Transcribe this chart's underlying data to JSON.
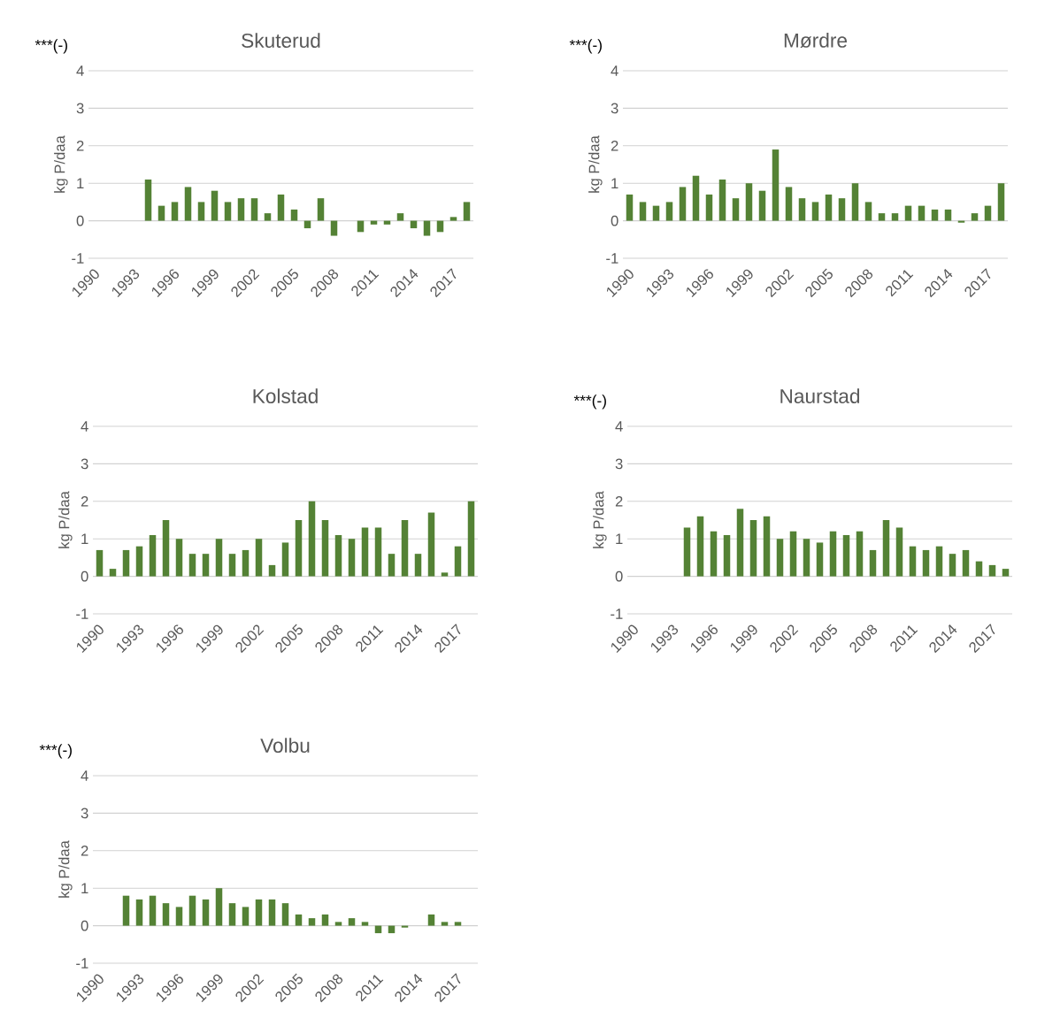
{
  "chart_data": [
    {
      "type": "bar",
      "title": "Skuterud",
      "ylabel": "kg P/daa",
      "annotations": [
        "***(-)"
      ],
      "color": "#548235",
      "ylim": [
        -1,
        4
      ],
      "yticks": [
        -1,
        0,
        1,
        2,
        3,
        4
      ],
      "grid": "y",
      "categories": [
        "1990",
        null,
        null,
        "1993",
        null,
        null,
        "1996",
        null,
        null,
        "1999",
        null,
        null,
        "2002",
        null,
        null,
        "2005",
        null,
        null,
        "2008",
        null,
        null,
        "2011",
        null,
        null,
        "2014",
        null,
        null,
        "2017",
        null
      ],
      "values": [
        null,
        null,
        null,
        null,
        1.1,
        0.4,
        0.5,
        0.9,
        0.5,
        0.8,
        0.5,
        0.6,
        0.6,
        0.2,
        0.7,
        0.3,
        -0.2,
        0.6,
        -0.4,
        null,
        -0.3,
        -0.1,
        -0.1,
        0.2,
        -0.2,
        -0.4,
        -0.3,
        0.1,
        0.5
      ]
    },
    {
      "type": "bar",
      "title": "Mørdre",
      "ylabel": "kg P/daa",
      "annotations": [
        "***(-)"
      ],
      "color": "#548235",
      "ylim": [
        -1,
        4
      ],
      "yticks": [
        -1,
        0,
        1,
        2,
        3,
        4
      ],
      "grid": "y",
      "categories": [
        "1990",
        null,
        null,
        "1993",
        null,
        null,
        "1996",
        null,
        null,
        "1999",
        null,
        null,
        "2002",
        null,
        null,
        "2005",
        null,
        null,
        "2008",
        null,
        null,
        "2011",
        null,
        null,
        "2014",
        null,
        null,
        "2017",
        null
      ],
      "values": [
        0.7,
        0.5,
        0.4,
        0.5,
        0.9,
        1.2,
        0.7,
        1.1,
        0.6,
        1.0,
        0.8,
        1.9,
        0.9,
        0.6,
        0.5,
        0.7,
        0.6,
        1.0,
        0.5,
        0.2,
        0.2,
        0.4,
        0.4,
        0.3,
        0.3,
        -0.05,
        0.2,
        0.4,
        1.0
      ]
    },
    {
      "type": "bar",
      "title": "Kolstad",
      "ylabel": "kg P/daa",
      "color": "#548235",
      "ylim": [
        -1,
        4
      ],
      "yticks": [
        -1,
        0,
        1,
        2,
        3,
        4
      ],
      "grid": "y",
      "categories": [
        "1990",
        null,
        null,
        "1993",
        null,
        null,
        "1996",
        null,
        null,
        "1999",
        null,
        null,
        "2002",
        null,
        null,
        "2005",
        null,
        null,
        "2008",
        null,
        null,
        "2011",
        null,
        null,
        "2014",
        null,
        null,
        "2017",
        null
      ],
      "values": [
        0.7,
        0.2,
        0.7,
        0.8,
        1.1,
        1.5,
        1.0,
        0.6,
        0.6,
        1.0,
        0.6,
        0.7,
        1.0,
        0.3,
        0.9,
        1.5,
        2.0,
        1.5,
        1.1,
        1.0,
        1.3,
        1.3,
        0.6,
        1.5,
        0.6,
        1.7,
        0.1,
        0.8,
        2.0
      ]
    },
    {
      "type": "bar",
      "title": "Naurstad",
      "ylabel": "kg P/daa",
      "annotations": [
        "***(-)"
      ],
      "color": "#548235",
      "ylim": [
        -1,
        4
      ],
      "yticks": [
        -1,
        0,
        1,
        2,
        3,
        4
      ],
      "grid": "y",
      "categories": [
        "1990",
        null,
        null,
        "1993",
        null,
        null,
        "1996",
        null,
        null,
        "1999",
        null,
        null,
        "2002",
        null,
        null,
        "2005",
        null,
        null,
        "2008",
        null,
        null,
        "2011",
        null,
        null,
        "2014",
        null,
        null,
        "2017",
        null
      ],
      "values": [
        null,
        null,
        null,
        null,
        1.3,
        1.6,
        1.2,
        1.1,
        1.8,
        1.5,
        1.6,
        1.0,
        1.2,
        1.0,
        0.9,
        1.2,
        1.1,
        1.2,
        0.7,
        1.5,
        1.3,
        0.8,
        0.7,
        0.8,
        0.6,
        0.7,
        0.4,
        0.3,
        0.2
      ]
    },
    {
      "type": "bar",
      "title": "Volbu",
      "ylabel": "kg P/daa",
      "annotations": [
        "***(-)"
      ],
      "color": "#548235",
      "ylim": [
        -1,
        4
      ],
      "yticks": [
        -1,
        0,
        1,
        2,
        3,
        4
      ],
      "grid": "y",
      "categories": [
        "1990",
        null,
        null,
        "1993",
        null,
        null,
        "1996",
        null,
        null,
        "1999",
        null,
        null,
        "2002",
        null,
        null,
        "2005",
        null,
        null,
        "2008",
        null,
        null,
        "2011",
        null,
        null,
        "2014",
        null,
        null,
        "2017",
        null
      ],
      "values": [
        null,
        null,
        0.8,
        0.7,
        0.8,
        0.6,
        0.5,
        0.8,
        0.7,
        1.0,
        0.6,
        0.5,
        0.7,
        0.7,
        0.6,
        0.3,
        0.2,
        0.3,
        0.1,
        0.2,
        0.1,
        -0.2,
        -0.2,
        -0.05,
        null,
        0.3,
        0.1,
        0.1,
        null
      ]
    }
  ]
}
